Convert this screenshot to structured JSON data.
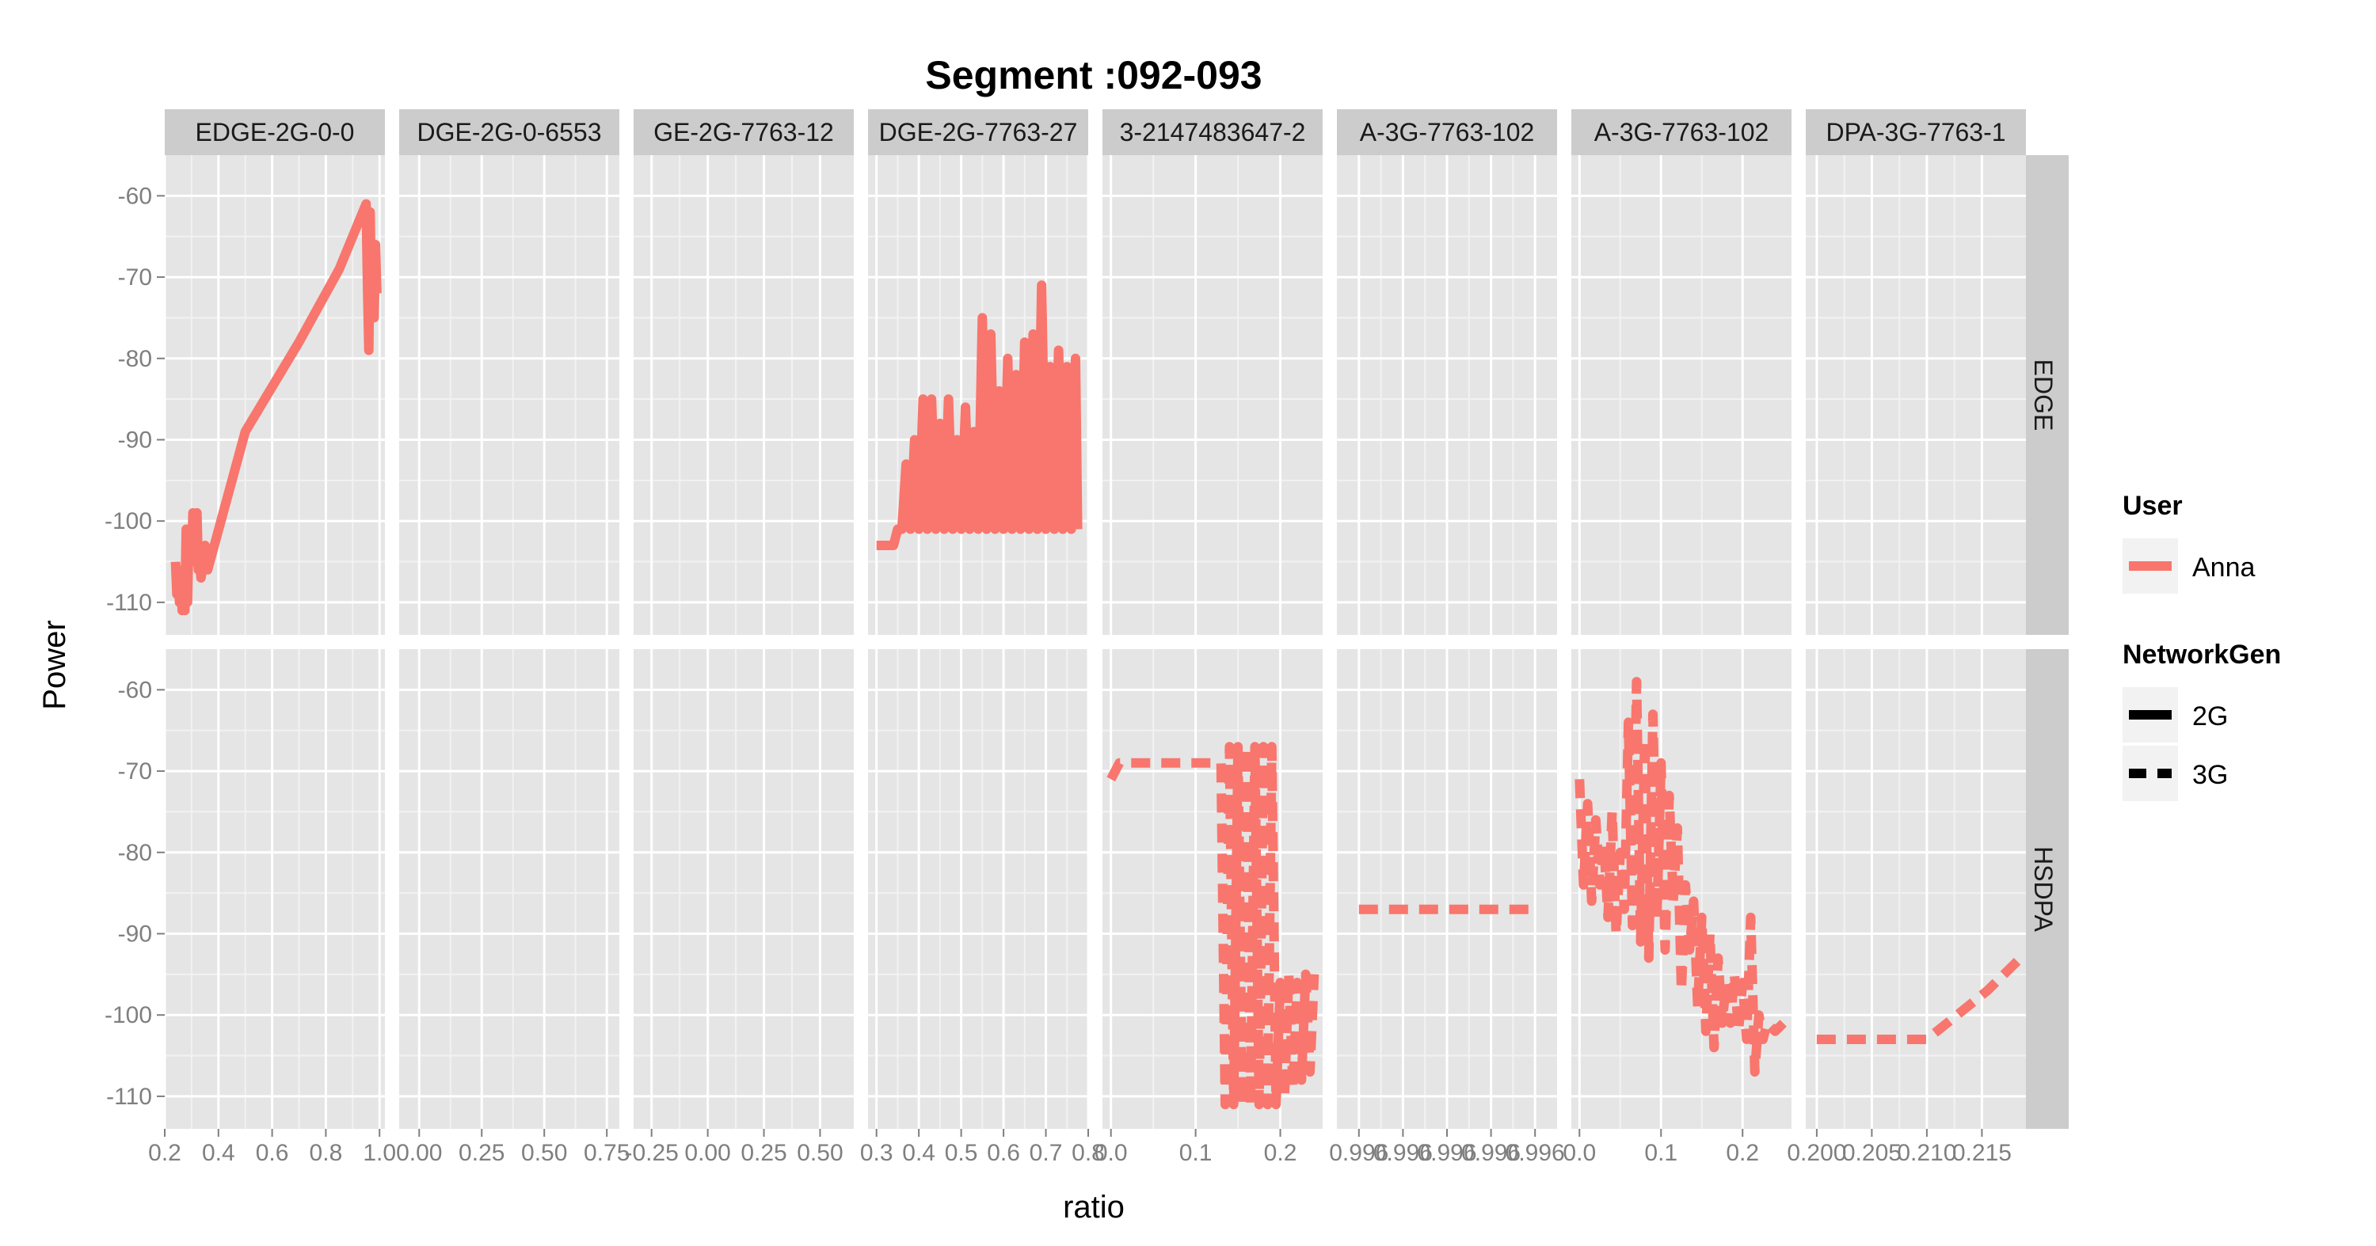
{
  "chart_data": {
    "type": "line",
    "title": "Segment :092-093",
    "xlabel": "ratio",
    "ylabel": "Power",
    "ylim": [
      -114,
      -55
    ],
    "yticks": [
      -60,
      -70,
      -80,
      -90,
      -100,
      -110
    ],
    "grid": true,
    "row_strips": [
      "EDGE",
      "HSDPA"
    ],
    "columns": [
      {
        "strip": "EDGE-2G-0-0",
        "xlim": [
          0.2,
          1.02
        ],
        "xticks": [
          0.2,
          0.4,
          0.6,
          0.8,
          1.0
        ],
        "xtick_labels": [
          "0.2",
          "0.4",
          "0.6",
          "0.8",
          "1.0"
        ]
      },
      {
        "strip": "DGE-2G-0-6553",
        "xlim": [
          -0.08,
          0.8
        ],
        "xticks": [
          0.0,
          0.25,
          0.5,
          0.75
        ],
        "xtick_labels": [
          "0.00",
          "0.25",
          "0.50",
          "0.75"
        ]
      },
      {
        "strip": "GE-2G-7763-12",
        "xlim": [
          -0.33,
          0.65
        ],
        "xticks": [
          -0.25,
          0.0,
          0.25,
          0.5
        ],
        "xtick_labels": [
          "-0.25",
          "0.00",
          "0.25",
          "0.50"
        ]
      },
      {
        "strip": "DGE-2G-7763-27",
        "xlim": [
          0.28,
          0.8
        ],
        "xticks": [
          0.3,
          0.4,
          0.5,
          0.6,
          0.7,
          0.8
        ],
        "xtick_labels": [
          "0.3",
          "0.4",
          "0.5",
          "0.6",
          "0.7",
          "0.8"
        ]
      },
      {
        "strip": "3-2147483647-2",
        "xlim": [
          -0.01,
          0.25
        ],
        "xticks": [
          0.0,
          0.1,
          0.2
        ],
        "xtick_labels": [
          "0.0",
          "0.1",
          "0.2"
        ]
      },
      {
        "strip": "A-3G-7763-102",
        "xlim": [
          0.99595,
          0.99605
        ],
        "xticks": [
          0.99596,
          0.99598,
          0.996,
          0.99602,
          0.99604
        ],
        "xtick_labels": [
          "0.996",
          "0.996",
          "0.996",
          "0.996",
          "0.996"
        ]
      },
      {
        "strip": "A-3G-7763-102",
        "xlim": [
          -0.01,
          0.26
        ],
        "xticks": [
          0.0,
          0.1,
          0.2
        ],
        "xtick_labels": [
          "0.0",
          "0.1",
          "0.2"
        ]
      },
      {
        "strip": "DPA-3G-7763-1",
        "xlim": [
          0.199,
          0.219
        ],
        "xticks": [
          0.2,
          0.205,
          0.21,
          0.215
        ],
        "xtick_labels": [
          "0.200",
          "0.205",
          "0.210",
          "0.215"
        ]
      }
    ],
    "series": [
      {
        "user": "Anna",
        "network": "2G",
        "row": "EDGE",
        "col": 0,
        "x": [
          0.24,
          0.245,
          0.25,
          0.255,
          0.26,
          0.265,
          0.27,
          0.275,
          0.28,
          0.285,
          0.29,
          0.295,
          0.3,
          0.305,
          0.31,
          0.315,
          0.32,
          0.325,
          0.33,
          0.335,
          0.34,
          0.35,
          0.36,
          0.5,
          0.7,
          0.85,
          0.95,
          0.955,
          0.96,
          0.965,
          0.97,
          0.975,
          0.98,
          0.985,
          0.99
        ],
        "y": [
          -105,
          -109,
          -106,
          -110,
          -107,
          -111,
          -108,
          -111,
          -101,
          -110,
          -102,
          -104,
          -105,
          -99,
          -105,
          -103,
          -99,
          -106,
          -105,
          -107,
          -106,
          -103,
          -106,
          -89,
          -78,
          -69,
          -61,
          -71,
          -79,
          -62,
          -74,
          -66,
          -75,
          -66,
          -72
        ]
      },
      {
        "user": "Anna",
        "network": "2G",
        "row": "EDGE",
        "col": 3,
        "x": [
          0.3,
          0.34,
          0.35,
          0.36,
          0.37,
          0.38,
          0.39,
          0.4,
          0.41,
          0.42,
          0.43,
          0.44,
          0.45,
          0.46,
          0.47,
          0.48,
          0.49,
          0.5,
          0.51,
          0.52,
          0.53,
          0.54,
          0.55,
          0.56,
          0.57,
          0.58,
          0.59,
          0.6,
          0.61,
          0.62,
          0.63,
          0.64,
          0.65,
          0.66,
          0.67,
          0.68,
          0.69,
          0.7,
          0.71,
          0.72,
          0.73,
          0.74,
          0.75,
          0.76,
          0.77,
          0.775
        ],
        "y": [
          -103,
          -103,
          -101,
          -101,
          -93,
          -101,
          -90,
          -101,
          -85,
          -101,
          -85,
          -101,
          -88,
          -101,
          -85,
          -101,
          -90,
          -101,
          -86,
          -101,
          -89,
          -101,
          -75,
          -101,
          -77,
          -101,
          -84,
          -101,
          -80,
          -101,
          -82,
          -101,
          -78,
          -101,
          -77,
          -101,
          -71,
          -101,
          -81,
          -101,
          -79,
          -101,
          -81,
          -101,
          -80,
          -101
        ]
      },
      {
        "user": "Anna",
        "network": "3G",
        "row": "HSDPA",
        "col": 4,
        "x": [
          0.0,
          0.01,
          0.02,
          0.1,
          0.13,
          0.135,
          0.14,
          0.145,
          0.15,
          0.155,
          0.16,
          0.165,
          0.17,
          0.175,
          0.18,
          0.185,
          0.19,
          0.195,
          0.2,
          0.205,
          0.21,
          0.215,
          0.22,
          0.225,
          0.23,
          0.235,
          0.24
        ],
        "y": [
          -71,
          -69,
          -69,
          -69,
          -69,
          -111,
          -67,
          -111,
          -67,
          -111,
          -67,
          -111,
          -67,
          -111,
          -67,
          -111,
          -67,
          -111,
          -96,
          -110,
          -95,
          -109,
          -96,
          -108,
          -95,
          -107,
          -95
        ]
      },
      {
        "user": "Anna",
        "network": "3G",
        "row": "HSDPA",
        "col": 5,
        "x": [
          0.99596,
          0.99604
        ],
        "y": [
          -87,
          -87
        ]
      },
      {
        "user": "Anna",
        "network": "3G",
        "row": "HSDPA",
        "col": 6,
        "x": [
          0.0,
          0.005,
          0.01,
          0.015,
          0.02,
          0.025,
          0.03,
          0.035,
          0.04,
          0.045,
          0.05,
          0.055,
          0.06,
          0.065,
          0.07,
          0.075,
          0.08,
          0.085,
          0.09,
          0.095,
          0.1,
          0.105,
          0.11,
          0.115,
          0.12,
          0.125,
          0.13,
          0.135,
          0.14,
          0.145,
          0.15,
          0.155,
          0.16,
          0.165,
          0.17,
          0.175,
          0.18,
          0.185,
          0.19,
          0.195,
          0.2,
          0.205,
          0.21,
          0.215,
          0.22,
          0.225,
          0.23,
          0.24,
          0.25
        ],
        "y": [
          -71,
          -84,
          -74,
          -86,
          -76,
          -84,
          -79,
          -88,
          -75,
          -90,
          -80,
          -87,
          -64,
          -89,
          -59,
          -91,
          -66,
          -93,
          -63,
          -88,
          -69,
          -92,
          -73,
          -86,
          -77,
          -97,
          -84,
          -92,
          -86,
          -99,
          -88,
          -102,
          -90,
          -104,
          -93,
          -101,
          -96,
          -101,
          -95,
          -102,
          -96,
          -103,
          -88,
          -107,
          -100,
          -103,
          -101,
          -102,
          -101
        ]
      },
      {
        "user": "Anna",
        "network": "3G",
        "row": "HSDPA",
        "col": 7,
        "x": [
          0.2,
          0.205,
          0.21,
          0.2155,
          0.2185
        ],
        "y": [
          -103,
          -103,
          -103,
          -97,
          -93
        ]
      }
    ]
  },
  "legend": {
    "user_title": "User",
    "user_items": [
      {
        "label": "Anna",
        "color": "#F8766D"
      }
    ],
    "network_title": "NetworkGen",
    "network_items": [
      {
        "label": "2G",
        "line": "solid"
      },
      {
        "label": "3G",
        "line": "dashed"
      }
    ]
  },
  "colors": {
    "series": "#F8766D",
    "panel_bg": "#E5E5E5",
    "strip_bg": "#CCCCCC",
    "grid_major": "#FFFFFF",
    "grid_minor": "#F2F2F2",
    "axis_text": "#7F7F7F",
    "text": "#000000"
  }
}
